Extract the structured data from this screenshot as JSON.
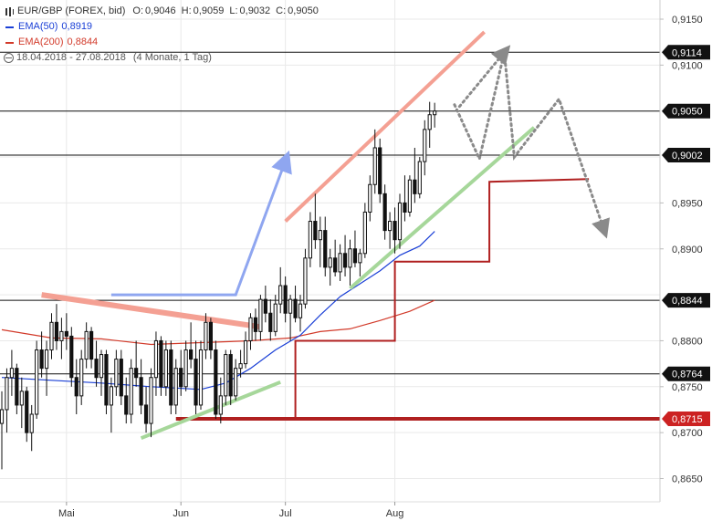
{
  "header": {
    "instrument": "EUR/GBP (FOREX, bid)",
    "open_label": "O:",
    "open": "0,9046",
    "high_label": "H:",
    "high": "0,9059",
    "low_label": "L:",
    "low": "0,9032",
    "close_label": "C:",
    "close": "0,9050",
    "ema50_label": "EMA(50)",
    "ema50_value": "0,8919",
    "ema200_label": "EMA(200)",
    "ema200_value": "0,8844",
    "range_text": "18.04.2018 - 27.08.2018",
    "range_note": "(4 Monate, 1 Tag)"
  },
  "colors": {
    "ema50": "#1a3fd6",
    "ema200": "#d23a2a",
    "candles": "#111111",
    "support_line": "#a6d79a",
    "resistance_line": "#f4a093",
    "blue_arrow": "#8fa6f0",
    "step_line": "#b02020",
    "projection": "#8a8a8a",
    "badge_bg": "#111111",
    "badge_red": "#cc2222"
  },
  "chart_data": {
    "type": "candlestick",
    "title": "EUR/GBP (FOREX, bid)",
    "ylim": [
      0.8625,
      0.917
    ],
    "y_ticks": [
      "0,9150",
      "0,9100",
      "0,9050",
      "0,9000",
      "0,8950",
      "0,8900",
      "0,8850",
      "0,8800",
      "0,8750",
      "0,8700",
      "0,8650"
    ],
    "y_tick_values": [
      0.915,
      0.91,
      0.905,
      0.9,
      0.895,
      0.89,
      0.885,
      0.88,
      0.875,
      0.87,
      0.865
    ],
    "x_ticks": [
      "Mai",
      "Jun",
      "Jul",
      "Aug"
    ],
    "x_tick_days": [
      13,
      36,
      57,
      79
    ],
    "horizontal_levels": [
      {
        "value": 0.9114,
        "label": "0,9114",
        "color": "black"
      },
      {
        "value": 0.905,
        "label": "0,9050",
        "color": "black"
      },
      {
        "value": 0.9002,
        "label": "0,9002",
        "color": "black"
      },
      {
        "value": 0.8844,
        "label": "0,8844",
        "color": "black"
      },
      {
        "value": 0.8764,
        "label": "0,8764",
        "color": "black"
      },
      {
        "value": 0.8715,
        "label": "0,8715",
        "color": "red"
      }
    ],
    "candles": [
      [
        0.871,
        0.8745,
        0.866,
        0.8725
      ],
      [
        0.8725,
        0.877,
        0.87,
        0.876
      ],
      [
        0.876,
        0.879,
        0.874,
        0.877
      ],
      [
        0.877,
        0.8775,
        0.872,
        0.873
      ],
      [
        0.873,
        0.876,
        0.8705,
        0.8745
      ],
      [
        0.8745,
        0.875,
        0.869,
        0.87
      ],
      [
        0.87,
        0.873,
        0.868,
        0.872
      ],
      [
        0.872,
        0.88,
        0.8715,
        0.879
      ],
      [
        0.879,
        0.881,
        0.876,
        0.877
      ],
      [
        0.877,
        0.88,
        0.874,
        0.879
      ],
      [
        0.879,
        0.883,
        0.878,
        0.882
      ],
      [
        0.882,
        0.884,
        0.879,
        0.88
      ],
      [
        0.88,
        0.8825,
        0.878,
        0.881
      ],
      [
        0.881,
        0.883,
        0.879,
        0.8805
      ],
      [
        0.8805,
        0.8815,
        0.875,
        0.876
      ],
      [
        0.876,
        0.878,
        0.872,
        0.874
      ],
      [
        0.874,
        0.879,
        0.873,
        0.878
      ],
      [
        0.878,
        0.882,
        0.877,
        0.881
      ],
      [
        0.881,
        0.8815,
        0.877,
        0.878
      ],
      [
        0.878,
        0.88,
        0.875,
        0.876
      ],
      [
        0.876,
        0.879,
        0.874,
        0.8785
      ],
      [
        0.8785,
        0.879,
        0.872,
        0.873
      ],
      [
        0.873,
        0.876,
        0.87,
        0.875
      ],
      [
        0.875,
        0.879,
        0.874,
        0.878
      ],
      [
        0.878,
        0.879,
        0.873,
        0.874
      ],
      [
        0.874,
        0.876,
        0.871,
        0.872
      ],
      [
        0.872,
        0.878,
        0.871,
        0.877
      ],
      [
        0.877,
        0.88,
        0.875,
        0.876
      ],
      [
        0.876,
        0.878,
        0.872,
        0.873
      ],
      [
        0.873,
        0.875,
        0.87,
        0.871
      ],
      [
        0.871,
        0.877,
        0.8695,
        0.876
      ],
      [
        0.876,
        0.881,
        0.874,
        0.88
      ],
      [
        0.88,
        0.8805,
        0.874,
        0.875
      ],
      [
        0.875,
        0.88,
        0.874,
        0.879
      ],
      [
        0.879,
        0.88,
        0.872,
        0.873
      ],
      [
        0.873,
        0.878,
        0.872,
        0.877
      ],
      [
        0.877,
        0.879,
        0.874,
        0.875
      ],
      [
        0.875,
        0.88,
        0.8745,
        0.879
      ],
      [
        0.879,
        0.882,
        0.877,
        0.878
      ],
      [
        0.878,
        0.88,
        0.872,
        0.873
      ],
      [
        0.873,
        0.88,
        0.8725,
        0.879
      ],
      [
        0.879,
        0.883,
        0.878,
        0.882
      ],
      [
        0.882,
        0.8825,
        0.878,
        0.879
      ],
      [
        0.879,
        0.88,
        0.8715,
        0.872
      ],
      [
        0.872,
        0.876,
        0.871,
        0.874
      ],
      [
        0.874,
        0.879,
        0.873,
        0.8785
      ],
      [
        0.8785,
        0.879,
        0.873,
        0.874
      ],
      [
        0.874,
        0.878,
        0.8735,
        0.877
      ],
      [
        0.877,
        0.879,
        0.876,
        0.8775
      ],
      [
        0.8775,
        0.881,
        0.877,
        0.88
      ],
      [
        0.88,
        0.883,
        0.879,
        0.8825
      ],
      [
        0.8825,
        0.8835,
        0.88,
        0.881
      ],
      [
        0.881,
        0.885,
        0.88,
        0.8845
      ],
      [
        0.8845,
        0.886,
        0.882,
        0.883
      ],
      [
        0.883,
        0.8845,
        0.88,
        0.881
      ],
      [
        0.881,
        0.885,
        0.8805,
        0.884
      ],
      [
        0.884,
        0.888,
        0.883,
        0.886
      ],
      [
        0.886,
        0.887,
        0.882,
        0.883
      ],
      [
        0.883,
        0.885,
        0.88,
        0.8845
      ],
      [
        0.8845,
        0.886,
        0.882,
        0.8825
      ],
      [
        0.8825,
        0.885,
        0.881,
        0.884
      ],
      [
        0.884,
        0.89,
        0.8835,
        0.889
      ],
      [
        0.889,
        0.894,
        0.888,
        0.893
      ],
      [
        0.893,
        0.896,
        0.89,
        0.891
      ],
      [
        0.891,
        0.8935,
        0.888,
        0.892
      ],
      [
        0.892,
        0.8935,
        0.887,
        0.888
      ],
      [
        0.888,
        0.89,
        0.886,
        0.889
      ],
      [
        0.889,
        0.891,
        0.887,
        0.8875
      ],
      [
        0.8875,
        0.8905,
        0.8865,
        0.8895
      ],
      [
        0.8895,
        0.8915,
        0.887,
        0.888
      ],
      [
        0.888,
        0.891,
        0.886,
        0.89
      ],
      [
        0.89,
        0.892,
        0.888,
        0.8885
      ],
      [
        0.8885,
        0.89,
        0.887,
        0.8895
      ],
      [
        0.8895,
        0.895,
        0.889,
        0.894
      ],
      [
        0.894,
        0.898,
        0.893,
        0.897
      ],
      [
        0.897,
        0.903,
        0.896,
        0.901
      ],
      [
        0.901,
        0.902,
        0.895,
        0.896
      ],
      [
        0.896,
        0.897,
        0.891,
        0.892
      ],
      [
        0.892,
        0.894,
        0.89,
        0.893
      ],
      [
        0.893,
        0.8945,
        0.8895,
        0.891
      ],
      [
        0.891,
        0.896,
        0.89,
        0.895
      ],
      [
        0.895,
        0.898,
        0.893,
        0.894
      ],
      [
        0.894,
        0.898,
        0.8935,
        0.8975
      ],
      [
        0.8975,
        0.901,
        0.895,
        0.896
      ],
      [
        0.896,
        0.9,
        0.8955,
        0.8995
      ],
      [
        0.8995,
        0.904,
        0.898,
        0.903
      ],
      [
        0.903,
        0.906,
        0.901,
        0.9046
      ],
      [
        0.9046,
        0.9059,
        0.9032,
        0.905
      ]
    ],
    "ema50": [
      [
        0,
        0.876
      ],
      [
        10,
        0.8757
      ],
      [
        20,
        0.8754
      ],
      [
        30,
        0.875
      ],
      [
        40,
        0.8747
      ],
      [
        45,
        0.8754
      ],
      [
        50,
        0.877
      ],
      [
        55,
        0.879
      ],
      [
        60,
        0.8806
      ],
      [
        64,
        0.8828
      ],
      [
        68,
        0.8848
      ],
      [
        72,
        0.8862
      ],
      [
        76,
        0.8876
      ],
      [
        80,
        0.8893
      ],
      [
        84,
        0.8903
      ],
      [
        87,
        0.8919
      ]
    ],
    "ema200": [
      [
        0,
        0.8812
      ],
      [
        10,
        0.8803
      ],
      [
        20,
        0.8802
      ],
      [
        30,
        0.8796
      ],
      [
        40,
        0.8798
      ],
      [
        50,
        0.88
      ],
      [
        58,
        0.8803
      ],
      [
        64,
        0.881
      ],
      [
        70,
        0.8813
      ],
      [
        76,
        0.8822
      ],
      [
        82,
        0.8832
      ],
      [
        87,
        0.8844
      ]
    ],
    "drawings": {
      "support_short": [
        [
          28,
          0.8694
        ],
        [
          56,
          0.8755
        ]
      ],
      "resistance_descending": [
        [
          8,
          0.885
        ],
        [
          52,
          0.8815
        ]
      ],
      "blue_arrow": [
        [
          22,
          0.885
        ],
        [
          47,
          0.885
        ],
        [
          57,
          0.8996
        ]
      ],
      "channel_upper": [
        [
          57,
          0.893
        ],
        [
          97,
          0.9136
        ]
      ],
      "channel_lower": [
        [
          70,
          0.8857
        ],
        [
          107,
          0.9032
        ]
      ],
      "step_line": [
        [
          35,
          0.8715
        ],
        [
          59,
          0.8715
        ],
        [
          59,
          0.88
        ],
        [
          79,
          0.88
        ],
        [
          79,
          0.8886
        ],
        [
          98,
          0.8886
        ],
        [
          98,
          0.8973
        ],
        [
          118,
          0.8976
        ]
      ],
      "projection_primary": [
        [
          91,
          0.9057
        ],
        [
          96,
          0.8998
        ],
        [
          101,
          0.9114
        ],
        [
          103,
          0.9
        ],
        [
          112,
          0.9063
        ],
        [
          121,
          0.8921
        ]
      ],
      "projection_alt": [
        [
          92,
          0.9055
        ],
        [
          101,
          0.9114
        ]
      ]
    },
    "last_day_index": 91,
    "grid": true,
    "legend_position": "top-left"
  }
}
